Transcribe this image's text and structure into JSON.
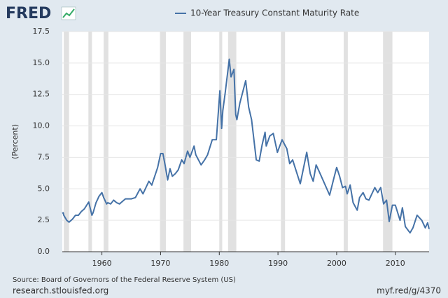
{
  "logo": "FRED",
  "chart_data": {
    "type": "line",
    "series": [
      {
        "name": "10-Year Treasury Constant Maturity Rate",
        "color": "#4572a7",
        "x": [
          1953.25,
          1953.4,
          1953.5,
          1954.0,
          1954.4,
          1955,
          1955.5,
          1956,
          1956.5,
          1957,
          1957.75,
          1958.3,
          1958.5,
          1959,
          1959.5,
          1960.0,
          1960.3,
          1960.8,
          1961,
          1961.5,
          1962,
          1962.5,
          1963,
          1963.5,
          1964,
          1965,
          1965.7,
          1966.5,
          1967,
          1967.5,
          1968,
          1968.5,
          1969,
          1969.5,
          1970,
          1970.4,
          1970.8,
          1971.2,
          1971.6,
          1972,
          1972.5,
          1973,
          1973.6,
          1974,
          1974.6,
          1975,
          1975.7,
          1976,
          1976.9,
          1977.5,
          1978,
          1978.8,
          1979.5,
          1980.1,
          1980.4,
          1980.6,
          1981.0,
          1981.7,
          1982.0,
          1982.5,
          1982.8,
          1983,
          1983.5,
          1984.5,
          1985,
          1985.5,
          1986.3,
          1986.8,
          1987.3,
          1987.8,
          1988,
          1988.6,
          1989.2,
          1989.9,
          1990.7,
          1991.5,
          1992,
          1992.5,
          1993.8,
          1994.9,
          1995.5,
          1996,
          1996.5,
          1997,
          1998.8,
          1999.5,
          2000.0,
          2000.5,
          2001.0,
          2001.5,
          2001.8,
          2002.3,
          2002.8,
          2003.5,
          2003.9,
          2004.5,
          2005,
          2005.5,
          2006.5,
          2007,
          2007.5,
          2008,
          2008.5,
          2008.95,
          2009.5,
          2010,
          2010.8,
          2011.2,
          2011.7,
          2012.5,
          2013,
          2013.7,
          2014.5,
          2015.1,
          2015.5,
          2015.75
        ],
        "values": [
          3.05,
          3.1,
          2.9,
          2.5,
          2.35,
          2.6,
          2.9,
          2.9,
          3.2,
          3.4,
          3.95,
          2.9,
          3.1,
          3.9,
          4.4,
          4.7,
          4.3,
          3.8,
          3.9,
          3.8,
          4.1,
          3.9,
          3.8,
          4.0,
          4.2,
          4.2,
          4.3,
          5.0,
          4.6,
          5.1,
          5.6,
          5.3,
          6.0,
          6.7,
          7.8,
          7.8,
          6.8,
          5.7,
          6.6,
          6.0,
          6.2,
          6.5,
          7.3,
          7.0,
          8.0,
          7.5,
          8.4,
          7.7,
          6.9,
          7.3,
          7.7,
          8.9,
          8.9,
          12.8,
          9.8,
          11.2,
          12.6,
          15.3,
          13.9,
          14.5,
          10.9,
          10.5,
          11.8,
          13.6,
          11.5,
          10.5,
          7.3,
          7.2,
          8.5,
          9.5,
          8.4,
          9.2,
          9.4,
          7.9,
          8.9,
          8.2,
          7.0,
          7.3,
          5.4,
          7.9,
          6.2,
          5.6,
          6.9,
          6.4,
          4.5,
          5.8,
          6.7,
          6.0,
          5.1,
          5.2,
          4.6,
          5.3,
          3.9,
          3.3,
          4.3,
          4.7,
          4.2,
          4.1,
          5.1,
          4.7,
          5.1,
          3.8,
          4.1,
          2.4,
          3.7,
          3.7,
          2.5,
          3.5,
          2.0,
          1.5,
          1.9,
          2.9,
          2.5,
          1.9,
          2.3,
          1.8
        ]
      }
    ],
    "recessions": [
      [
        1953.5,
        1954.4
      ],
      [
        1957.7,
        1958.3
      ],
      [
        1960.3,
        1961.1
      ],
      [
        1969.9,
        1970.9
      ],
      [
        1973.9,
        1975.2
      ],
      [
        1980.0,
        1980.5
      ],
      [
        1981.5,
        1982.9
      ],
      [
        1990.5,
        1991.2
      ],
      [
        2001.2,
        2001.9
      ],
      [
        2007.9,
        2009.5
      ]
    ],
    "recession_color": "#e1e1e1",
    "xlim": [
      1953.25,
      2015.75
    ],
    "xticks": [
      1960,
      1970,
      1980,
      1990,
      2000,
      2010
    ],
    "ylim": [
      0,
      17.5
    ],
    "yticks": [
      {
        "value": 0,
        "label": "0.0"
      },
      {
        "value": 2.5,
        "label": "2.5"
      },
      {
        "value": 5,
        "label": "5.0"
      },
      {
        "value": 7.5,
        "label": "7.5"
      },
      {
        "value": 10,
        "label": "10.0"
      },
      {
        "value": 12.5,
        "label": "12.5"
      },
      {
        "value": 15,
        "label": "15.0"
      },
      {
        "value": 17.5,
        "label": "17.5"
      }
    ],
    "ylabel": "(Percent)",
    "grid": true,
    "source": "Source: Board of Governors of the Federal Reserve System (US)"
  },
  "footer": {
    "left": "research.stlouisfed.org",
    "right": "myf.red/g/4370"
  }
}
